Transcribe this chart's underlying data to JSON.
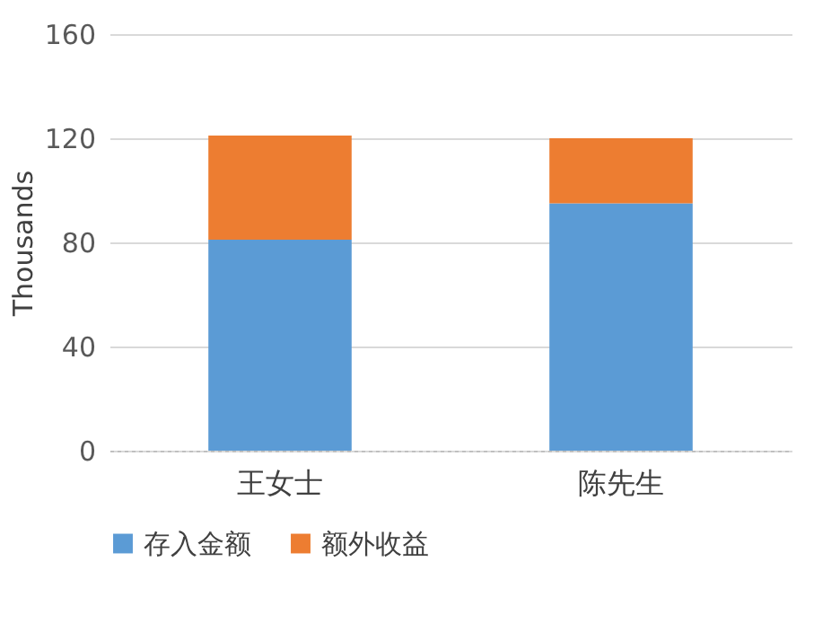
{
  "chart_data": {
    "type": "bar",
    "stacked": true,
    "ylabel": "Thousands",
    "categories": [
      "王女士",
      "陈先生"
    ],
    "series": [
      {
        "name": "存入金额",
        "color": "#5b9bd5",
        "values": [
          81,
          95
        ]
      },
      {
        "name": "额外收益",
        "color": "#ed7d31",
        "values": [
          40,
          25
        ]
      }
    ],
    "ylim": [
      0,
      160
    ],
    "yticks": [
      0,
      40,
      80,
      120,
      160
    ],
    "grid": "y",
    "legend": "bottom"
  }
}
